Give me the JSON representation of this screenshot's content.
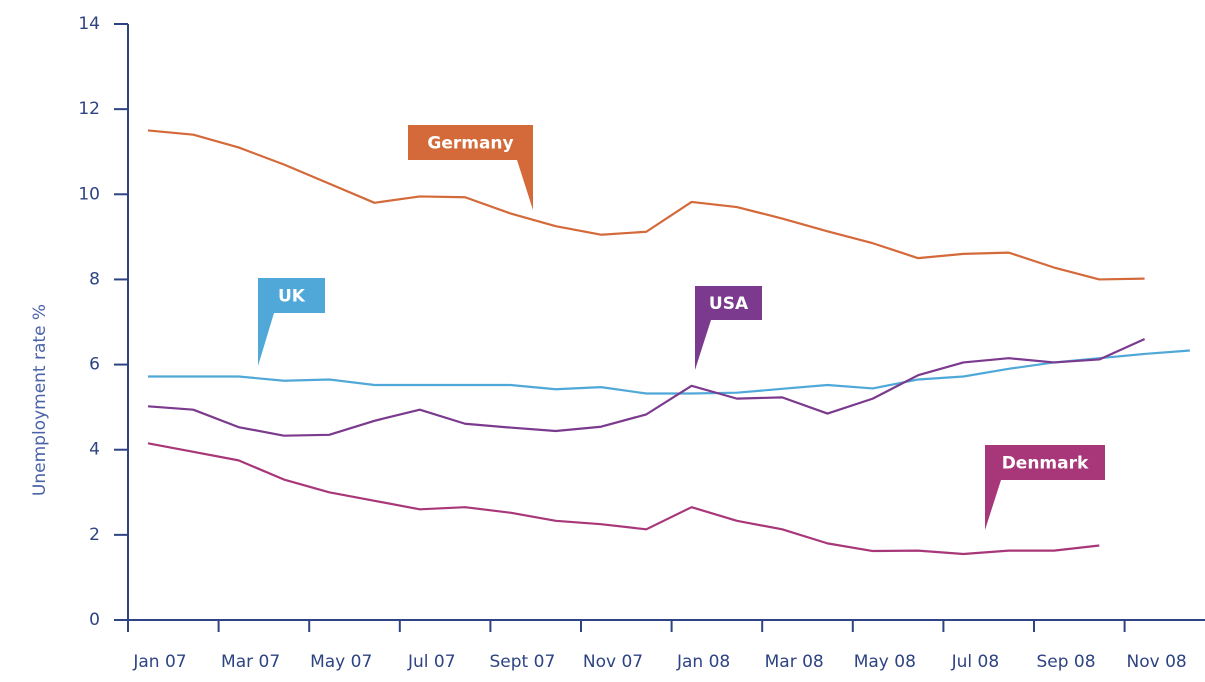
{
  "chart_data": {
    "type": "line",
    "y_label": "Unemployment rate %",
    "categories": [
      "Jan 07",
      null,
      "Mar 07",
      null,
      "May 07",
      null,
      "Jul 07",
      null,
      "Sept 07",
      null,
      "Nov 07",
      null,
      "Jan 08",
      null,
      "Mar 08",
      null,
      "May 08",
      null,
      "Jul 08",
      null,
      "Sep 08",
      null,
      "Nov 08",
      null
    ],
    "series": [
      {
        "name": "Germany",
        "color": "#d4693a",
        "values": [
          11.5,
          11.4,
          11.1,
          10.7,
          10.25,
          9.8,
          9.95,
          9.93,
          9.55,
          9.25,
          9.05,
          9.12,
          9.82,
          9.7,
          9.43,
          9.13,
          8.85,
          8.5,
          8.6,
          8.63,
          8.28,
          8.0,
          8.02,
          null
        ]
      },
      {
        "name": "UK",
        "color": "#4fa8d8",
        "values": [
          5.72,
          5.72,
          5.72,
          5.62,
          5.65,
          5.52,
          5.52,
          5.52,
          5.52,
          5.42,
          5.47,
          5.32,
          5.32,
          5.34,
          5.43,
          5.52,
          5.44,
          5.65,
          5.72,
          5.9,
          6.05,
          6.15,
          6.25,
          6.33
        ]
      },
      {
        "name": "USA",
        "color": "#7b3a8e",
        "values": [
          5.02,
          4.94,
          4.53,
          4.33,
          4.35,
          4.68,
          4.94,
          4.61,
          4.52,
          4.44,
          4.54,
          4.83,
          5.5,
          5.2,
          5.23,
          4.85,
          5.2,
          5.75,
          6.05,
          6.15,
          6.05,
          6.12,
          6.6,
          null
        ]
      },
      {
        "name": "Denmark",
        "color": "#a83779",
        "values": [
          4.15,
          3.95,
          3.75,
          3.3,
          3.0,
          2.8,
          2.6,
          2.65,
          2.52,
          2.33,
          2.25,
          2.13,
          2.65,
          2.33,
          2.13,
          1.8,
          1.62,
          1.63,
          1.55,
          1.63,
          1.63,
          1.75,
          null,
          null
        ]
      }
    ],
    "ylim": [
      0,
      14
    ],
    "yticks": [
      0,
      2,
      4,
      6,
      8,
      10,
      12,
      14
    ]
  }
}
